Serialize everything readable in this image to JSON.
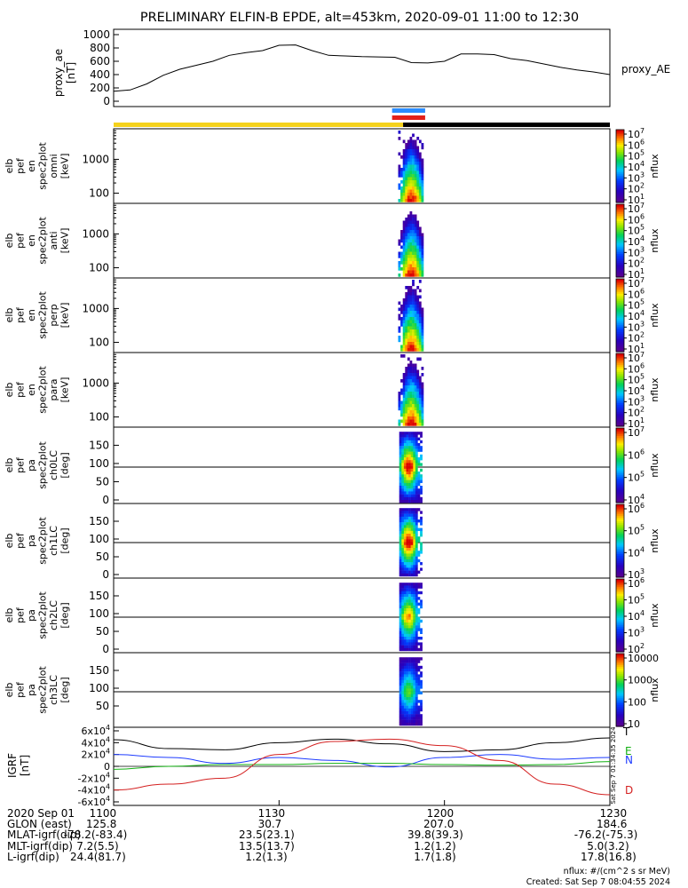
{
  "title": "PRELIMINARY ELFIN-B EPDE, alt=453km, 2020-09-01 11:00 to 12:30",
  "colors": {
    "sunlit_bar": "#f5d21c",
    "eclipse_bar": "#000000",
    "science_zone_top": "#2b8cff",
    "science_zone_bottom": "#e3201b",
    "field_n": "#1e3cff",
    "field_e": "#12b012",
    "field_d": "#d42020",
    "field_total": "#000000"
  },
  "footer": {
    "rows": [
      {
        "label": "2020 Sep 01",
        "values": [
          "1100",
          "1130",
          "1200",
          "1230"
        ]
      },
      {
        "label": "GLON (east)",
        "values": [
          "125.8",
          "30.7",
          "207.0",
          "184.6"
        ]
      },
      {
        "label": "MLAT-igrf(dip)",
        "values": [
          "-78.2(-83.4)",
          "23.5(23.1)",
          "39.8(39.3)",
          "-76.2(-75.3)"
        ]
      },
      {
        "label": "MLT-igrf(dip)",
        "values": [
          "7.2(5.5)",
          "13.5(13.7)",
          "1.2(1.2)",
          "5.0(3.2)"
        ]
      },
      {
        "label": "L-igrf(dip)",
        "values": [
          "24.4(81.7)",
          "1.2(1.3)",
          "1.7(1.8)",
          "17.8(16.8)"
        ]
      }
    ],
    "units_note": "nflux: #/(cm^2 s sr MeV)",
    "created": "Created: Sat Sep  7 08:04:55 2024",
    "side_stamp": "Sat Sep  7 01:34:35 2024"
  },
  "chart_data": [
    {
      "type": "line",
      "ylabel": "proxy_ae [nT]",
      "series_label": "proxy_AE",
      "ylim": [
        0,
        1000
      ],
      "yticks": [
        "0",
        "200",
        "400",
        "600",
        "800",
        "1000"
      ],
      "x": [
        "11:00",
        "11:03",
        "11:06",
        "11:09",
        "11:12",
        "11:15",
        "11:18",
        "11:21",
        "11:24",
        "11:27",
        "11:30",
        "11:33",
        "11:36",
        "11:39",
        "11:42",
        "11:45",
        "11:48",
        "11:51",
        "11:54",
        "11:57",
        "12:00",
        "12:03",
        "12:06",
        "12:09",
        "12:12",
        "12:15",
        "12:18",
        "12:21",
        "12:24",
        "12:27",
        "12:30"
      ],
      "values": [
        150,
        170,
        260,
        390,
        480,
        540,
        600,
        690,
        730,
        760,
        840,
        845,
        760,
        690,
        680,
        670,
        665,
        660,
        580,
        575,
        600,
        710,
        710,
        700,
        640,
        610,
        560,
        510,
        470,
        440,
        400
      ]
    },
    {
      "type": "heatmap",
      "ylabel": "elb pef en spec2plot omni [keV]",
      "yscale": "log",
      "yticks": [
        "100",
        "1000"
      ],
      "colorbar": {
        "label": "nflux",
        "ticks": [
          "10^1",
          "10^2",
          "10^3",
          "10^4",
          "10^5",
          "10^6",
          "10^7"
        ]
      }
    },
    {
      "type": "heatmap",
      "ylabel": "elb pef en spec2plot anti [keV]",
      "yscale": "log",
      "yticks": [
        "100",
        "1000"
      ],
      "colorbar": {
        "label": "nflux",
        "ticks": [
          "10^1",
          "10^2",
          "10^3",
          "10^4",
          "10^5",
          "10^6",
          "10^7"
        ]
      }
    },
    {
      "type": "heatmap",
      "ylabel": "elb pef en spec2plot perp [keV]",
      "yscale": "log",
      "yticks": [
        "100",
        "1000"
      ],
      "colorbar": {
        "label": "nflux",
        "ticks": [
          "10^1",
          "10^2",
          "10^3",
          "10^4",
          "10^5",
          "10^6",
          "10^7"
        ]
      }
    },
    {
      "type": "heatmap",
      "ylabel": "elb pef en spec2plot para [keV]",
      "yscale": "log",
      "yticks": [
        "100",
        "1000"
      ],
      "colorbar": {
        "label": "nflux",
        "ticks": [
          "10^1",
          "10^2",
          "10^3",
          "10^4",
          "10^5",
          "10^6",
          "10^7"
        ]
      }
    },
    {
      "type": "heatmap",
      "ylabel": "elb pef pa spec2plot ch0LC [deg]",
      "yticks": [
        "0",
        "50",
        "100",
        "150"
      ],
      "colorbar": {
        "label": "nflux",
        "ticks": [
          "10^4",
          "10^5",
          "10^6",
          "10^7"
        ]
      }
    },
    {
      "type": "heatmap",
      "ylabel": "elb pef pa spec2plot ch1LC [deg]",
      "yticks": [
        "0",
        "50",
        "100",
        "150"
      ],
      "colorbar": {
        "label": "nflux",
        "ticks": [
          "10^3",
          "10^4",
          "10^5",
          "10^6"
        ]
      }
    },
    {
      "type": "heatmap",
      "ylabel": "elb pef pa spec2plot ch2LC [deg]",
      "yticks": [
        "0",
        "50",
        "100",
        "150"
      ],
      "colorbar": {
        "label": "nflux",
        "ticks": [
          "10^2",
          "10^3",
          "10^4",
          "10^5",
          "10^6"
        ]
      }
    },
    {
      "type": "heatmap",
      "ylabel": "elb pef pa spec2plot ch3LC [deg]",
      "yticks": [
        "50",
        "100",
        "150"
      ],
      "colorbar": {
        "label": "nflux",
        "ticks": [
          "10",
          "100",
          "1000",
          "10000"
        ]
      }
    },
    {
      "type": "line",
      "ylabel": "IGRF [nT]",
      "ylim": [
        -60000,
        60000
      ],
      "yticks": [
        "-6x10^4",
        "-4x10^4",
        "-2x10^4",
        "0",
        "2x10^4",
        "4x10^4",
        "6x10^4"
      ],
      "x": [
        "11:00",
        "11:10",
        "11:20",
        "11:30",
        "11:40",
        "11:50",
        "12:00",
        "12:10",
        "12:20",
        "12:30"
      ],
      "series": [
        {
          "name": "T",
          "values": [
            45000,
            30000,
            28000,
            40000,
            46000,
            38000,
            25000,
            28000,
            40000,
            48000
          ]
        },
        {
          "name": "N",
          "values": [
            20000,
            15000,
            5000,
            15000,
            10000,
            -1000,
            15000,
            20000,
            12000,
            15000
          ]
        },
        {
          "name": "E",
          "values": [
            -5000,
            0,
            3000,
            3000,
            5000,
            5000,
            3000,
            2000,
            3000,
            8000
          ]
        },
        {
          "name": "D",
          "values": [
            -40000,
            -30000,
            -20000,
            20000,
            42000,
            46000,
            35000,
            10000,
            -30000,
            -48000
          ]
        }
      ]
    }
  ]
}
